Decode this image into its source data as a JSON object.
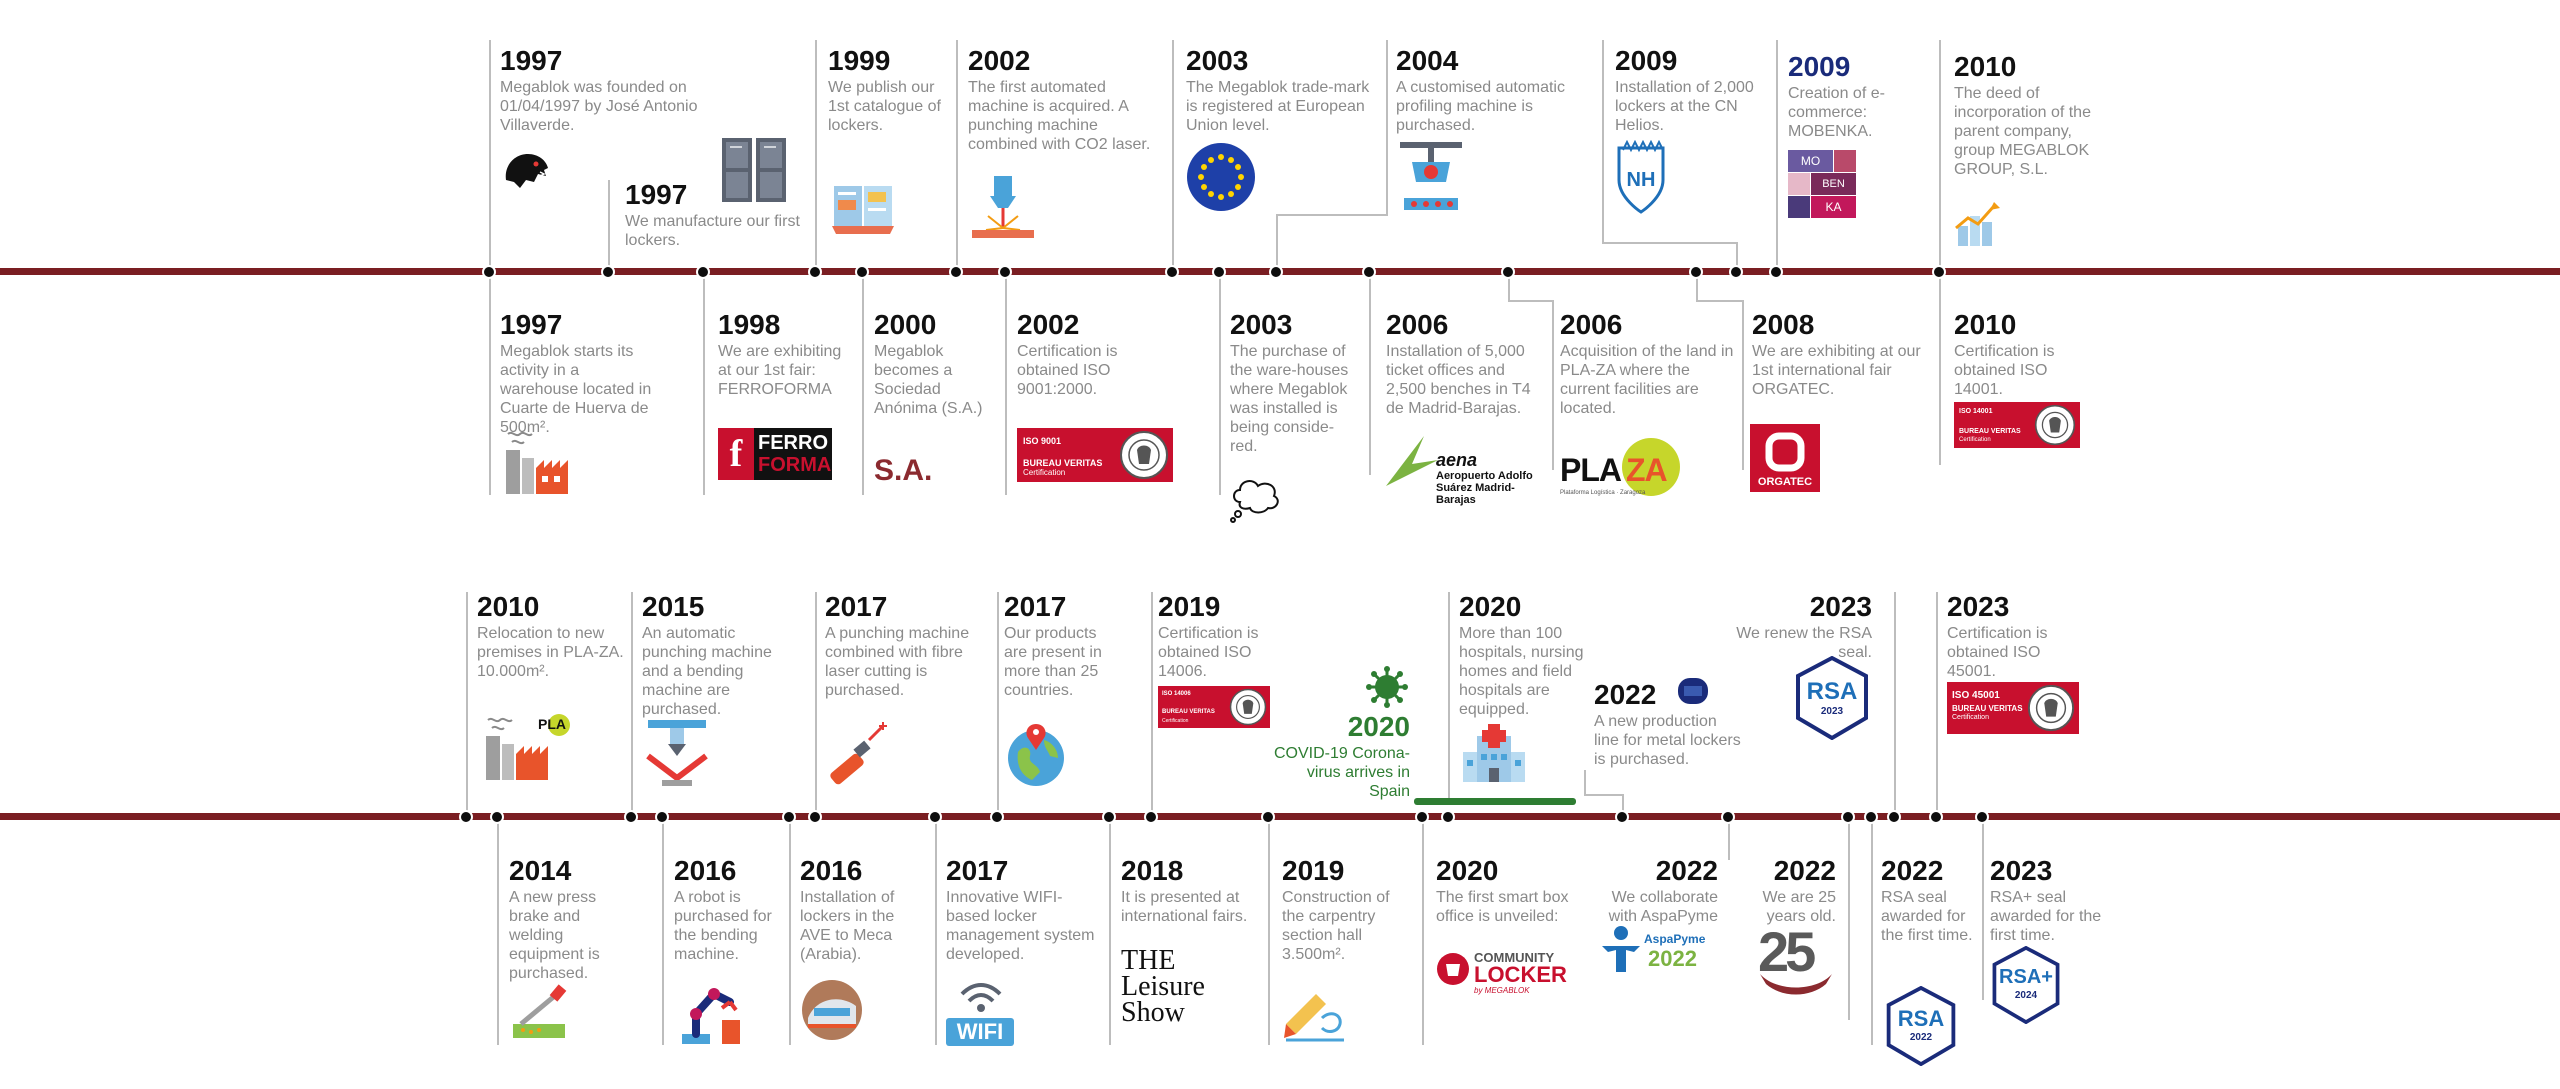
{
  "events_top": {
    "e1997a": {
      "year": "1997",
      "text": "Megablok was founded on 01/04/1997 by José Antonio Villaverde."
    },
    "e1997b": {
      "year": "1997",
      "text": "We manufacture our first lockers."
    },
    "e1999": {
      "year": "1999",
      "text": "We publish our 1st catalogue of lockers."
    },
    "e2002a": {
      "year": "2002",
      "text": "The first automated machine is acquired. A punching machine combined with CO2 laser."
    },
    "e2003a": {
      "year": "2003",
      "text": "The Megablok trade-mark is registered at European Union level."
    },
    "e2004": {
      "year": "2004",
      "text": "A customised automatic profiling machine is purchased."
    },
    "e2009a": {
      "year": "2009",
      "text": "Installation of 2,000 lockers at the CN Helios."
    },
    "e2009b": {
      "year": "2009",
      "text": "Creation of e-commerce: MOBENKA."
    },
    "e2010a": {
      "year": "2010",
      "text": "The deed of incorporation of the parent company, group MEGABLOK GROUP, S.L."
    },
    "e1997c": {
      "year": "1997",
      "text": "Megablok starts its activity in a warehouse located in Cuarte de Huerva de 500m²."
    },
    "e1998": {
      "year": "1998",
      "text": "We are exhibiting at our 1st fair: FERROFORMA"
    },
    "e2000": {
      "year": "2000",
      "text": "Megablok becomes a Sociedad Anónima (S.A.)"
    },
    "e2002b": {
      "year": "2002",
      "text": "Certification is obtained ISO 9001:2000."
    },
    "e2003b": {
      "year": "2003",
      "text": "The purchase of the ware-houses where Megablok was installed is being conside-red."
    },
    "e2006a": {
      "year": "2006",
      "text": "Installation of 5,000 ticket offices and 2,500 benches in T4 de Madrid-Barajas."
    },
    "e2006b": {
      "year": "2006",
      "text": "Acquisition of the land in PLA-ZA where the current facilities are located."
    },
    "e2008": {
      "year": "2008",
      "text": "We are exhibiting at our 1st international fair ORGATEC."
    },
    "e2010b": {
      "year": "2010",
      "text": "Certification is obtained ISO 14001."
    }
  },
  "events_bottom": {
    "e2010c": {
      "year": "2010",
      "text": "Relocation to new premises in PLA-ZA. 10.000m²."
    },
    "e2015": {
      "year": "2015",
      "text": "An automatic punching machine and a bending machine are purchased."
    },
    "e2017a": {
      "year": "2017",
      "text": "A punching machine combined with fibre laser cutting is purchased."
    },
    "e2017b": {
      "year": "2017",
      "text": "Our products are present in more than 25 countries."
    },
    "e2019a": {
      "year": "2019",
      "text": "Certification is obtained ISO 14006."
    },
    "e2020covid": {
      "year": "2020",
      "text": "COVID-19 Corona-virus arrives in Spain"
    },
    "e2020a": {
      "year": "2020",
      "text": "More than 100 hospitals, nursing homes and field hospitals are equipped."
    },
    "e2022a": {
      "year": "2022",
      "text": "A new production line for metal lockers is purchased."
    },
    "e2023a": {
      "year": "2023",
      "text": "We renew the RSA seal."
    },
    "e2023b": {
      "year": "2023",
      "text": "Certification is obtained ISO 45001."
    },
    "e2014": {
      "year": "2014",
      "text": "A new press brake and welding equipment is purchased."
    },
    "e2016a": {
      "year": "2016",
      "text": "A robot is purchased for the bending machine."
    },
    "e2016b": {
      "year": "2016",
      "text": "Installation of lockers in the AVE to Meca (Arabia)."
    },
    "e2017c": {
      "year": "2017",
      "text": "Innovative WIFI-based locker management system developed."
    },
    "e2018": {
      "year": "2018",
      "text": "It is presented at international fairs."
    },
    "e2019b": {
      "year": "2019",
      "text": "Construction of the carpentry section hall 3.500m²."
    },
    "e2020b": {
      "year": "2020",
      "text": "The first smart box office is unveiled:"
    },
    "e2022b": {
      "year": "2022",
      "text": "We collaborate with AspaPyme"
    },
    "e2022c": {
      "year": "2022",
      "text": "We are 25 years old."
    },
    "e2022d": {
      "year": "2022",
      "text": "RSA seal awarded for the first time."
    },
    "e2023c": {
      "year": "2023",
      "text": "RSA+ seal awarded for the first time."
    }
  },
  "logos": {
    "mobenka": [
      "MO",
      "BEN",
      "KA"
    ],
    "ferro": "FERRO",
    "forma": "FORMA",
    "sa": "S.A.",
    "iso9001": "ISO 9001",
    "bureau": "BUREAU VERITAS",
    "certification": "Certification",
    "iso14001": "ISO 14001",
    "iso14006": "ISO 14006",
    "iso45001": "ISO 45001",
    "aena": "aena",
    "aena_sub": "Aeropuerto Adolfo Suárez Madrid-Barajas",
    "plaza": "PLA",
    "plaza_z": "ZA",
    "plaza_sub": "Plataforma Logística · Zaragoza",
    "orgatec": "ORGATEC",
    "plaz_small": "PLA",
    "leisure": "THE Leisure Show",
    "wifi": "WIFI",
    "community": "COMMUNITY",
    "locker": "LOCKER",
    "bymegablok": "by MEGABLOK",
    "aspapyme": "AspaPyme",
    "aspa_year": "2022",
    "twentyfive": "25",
    "rsa": "RSA",
    "rsa_2023": "2023",
    "rsa_2022": "2022",
    "rsa_plus": "RSA+",
    "rsa_2024": "2024"
  },
  "colors": {
    "timeline": "#7a1e22",
    "dot": "#0d0d0d",
    "covid_green": "#2e7d32",
    "mobenka_blue": "#1a2b7a",
    "bureau_red": "#c8102e"
  }
}
